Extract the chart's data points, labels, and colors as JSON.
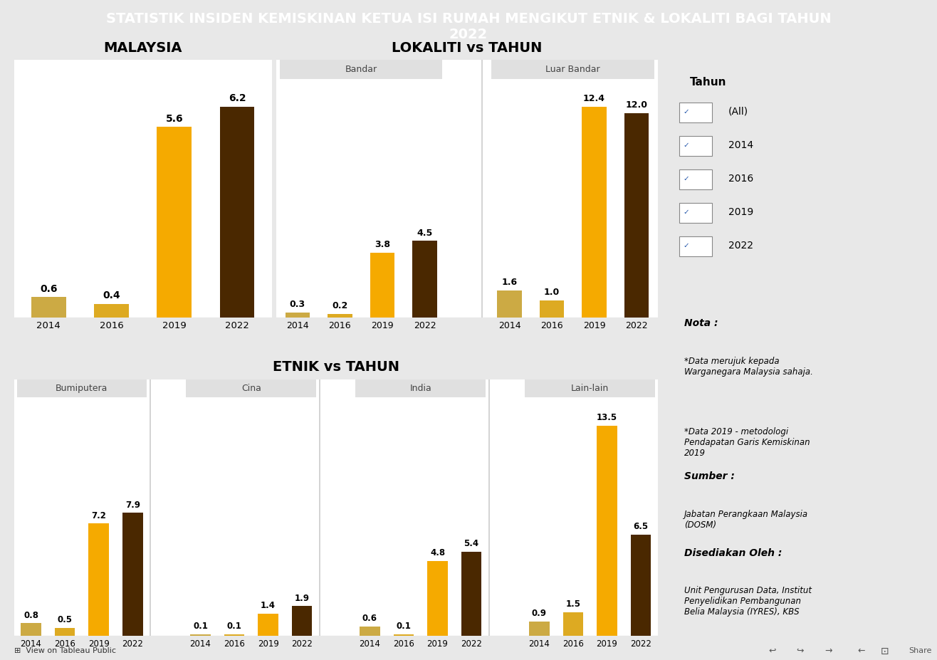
{
  "title": "STATISTIK INSIDEN KEMISKINAN KETUA ISI RUMAH MENGIKUT ETNIK & LOKALITI BAGI TAHUN\n2022",
  "title_bg": "#5c5c5c",
  "title_color": "#ffffff",
  "chart_bg": "#e8e8e8",
  "plot_bg": "#ffffff",
  "color_2014": "#ccaa44",
  "color_2016": "#ddaa22",
  "color_2019": "#f5aa00",
  "color_2022": "#4a2800",
  "malaysia": {
    "title": "MALAYSIA",
    "years": [
      "2014",
      "2016",
      "2019",
      "2022"
    ],
    "values": [
      0.6,
      0.4,
      5.6,
      6.2
    ]
  },
  "lokaliti": {
    "title": "LOKALITI vs TAHUN",
    "bandar_label": "Bandar",
    "luar_bandar_label": "Luar Bandar",
    "years": [
      "2014",
      "2016",
      "2019",
      "2022"
    ],
    "bandar": [
      0.3,
      0.2,
      3.8,
      4.5
    ],
    "luar_bandar": [
      1.6,
      1.0,
      12.4,
      12.0
    ]
  },
  "etnik": {
    "title": "ETNIK vs TAHUN",
    "groups": [
      "Bumiputera",
      "Cina",
      "India",
      "Lain-lain"
    ],
    "years": [
      "2014",
      "2016",
      "2019",
      "2022"
    ],
    "bumiputera": [
      0.8,
      0.5,
      7.2,
      7.9
    ],
    "cina": [
      0.1,
      0.1,
      1.4,
      1.9
    ],
    "india": [
      0.6,
      0.1,
      4.8,
      5.4
    ],
    "lain_lain": [
      0.9,
      1.5,
      13.5,
      6.5
    ]
  },
  "legend_title": "Tahun",
  "legend_items": [
    "(All)",
    "2014",
    "2016",
    "2019",
    "2022"
  ],
  "nota_title": "Nota :",
  "nota_line1": "*Data merujuk kepada\nWarganegara Malaysia sahaja.",
  "nota_line2": "*Data 2019 - metodologi\nPendapatan Garis Kemiskinan\n2019",
  "sumber_title": "Sumber :",
  "sumber_text": "Jabatan Perangkaan Malaysia\n(DOSM)",
  "disediakan_title": "Disediakan Oleh :",
  "disediakan_text": "Unit Pengurusan Data, Institut\nPenyelidikan Pembangunan\nBelia Malaysia (IYRES), KBS",
  "bottom_text": "⊞  View on Tableau Public"
}
